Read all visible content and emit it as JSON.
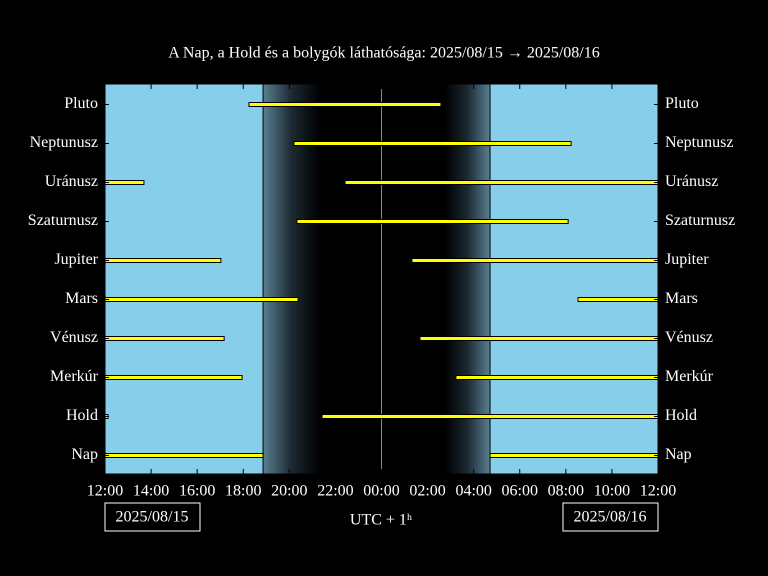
{
  "chart_data": {
    "type": "visibility",
    "title": "A Nap, a Hold és a bolygók láthatósága: 2025/08/15 → 2025/08/16",
    "xlabel": "UTC + 1ʰ",
    "start_date": "2025/08/15",
    "end_date": "2025/08/16",
    "categories": [
      "Pluto",
      "Neptunusz",
      "Uránusz",
      "Szaturnusz",
      "Jupiter",
      "Mars",
      "Vénusz",
      "Merkúr",
      "Hold",
      "Nap"
    ],
    "series": [
      {
        "name": "Pluto",
        "segments": [
          [
            6.25,
            14.58
          ]
        ]
      },
      {
        "name": "Neptunusz",
        "segments": [
          [
            8.2,
            20.23
          ]
        ]
      },
      {
        "name": "Uránusz",
        "segments": [
          [
            0,
            1.69
          ],
          [
            10.42,
            24
          ]
        ]
      },
      {
        "name": "Szaturnusz",
        "segments": [
          [
            8.33,
            20.1
          ]
        ]
      },
      {
        "name": "Jupiter",
        "segments": [
          [
            0,
            5.03
          ],
          [
            13.32,
            24
          ]
        ]
      },
      {
        "name": "Mars",
        "segments": [
          [
            0,
            8.38
          ],
          [
            20.53,
            24
          ]
        ]
      },
      {
        "name": "Vénusz",
        "segments": [
          [
            0,
            5.17
          ],
          [
            13.67,
            24
          ]
        ]
      },
      {
        "name": "Merkúr",
        "segments": [
          [
            0,
            5.95
          ],
          [
            15.23,
            24
          ]
        ]
      },
      {
        "name": "Hold",
        "segments": [
          [
            0,
            0.13
          ],
          [
            9.42,
            24
          ]
        ]
      },
      {
        "name": "Nap",
        "segments": [
          [
            0,
            6.86
          ],
          [
            16.71,
            24
          ]
        ]
      }
    ],
    "bar_color": "#ffff00",
    "day_color": "#87ceeb",
    "night_color": "#000000",
    "sunset": 6.86,
    "dusk_end": 9.33,
    "dawn_start": 14.76,
    "sunrise": 16.71,
    "midnight": 12,
    "xlim": [
      0,
      24
    ],
    "xticks": [
      {
        "value": 0,
        "label": "12:00"
      },
      {
        "value": 2,
        "label": "14:00"
      },
      {
        "value": 4,
        "label": "16:00"
      },
      {
        "value": 6,
        "label": "18:00"
      },
      {
        "value": 8,
        "label": "20:00"
      },
      {
        "value": 10,
        "label": "22:00"
      },
      {
        "value": 12,
        "label": "00:00"
      },
      {
        "value": 14,
        "label": "02:00"
      },
      {
        "value": 16,
        "label": "04:00"
      },
      {
        "value": 18,
        "label": "06:00"
      },
      {
        "value": 20,
        "label": "08:00"
      },
      {
        "value": 22,
        "label": "10:00"
      },
      {
        "value": 24,
        "label": "12:00"
      }
    ]
  }
}
